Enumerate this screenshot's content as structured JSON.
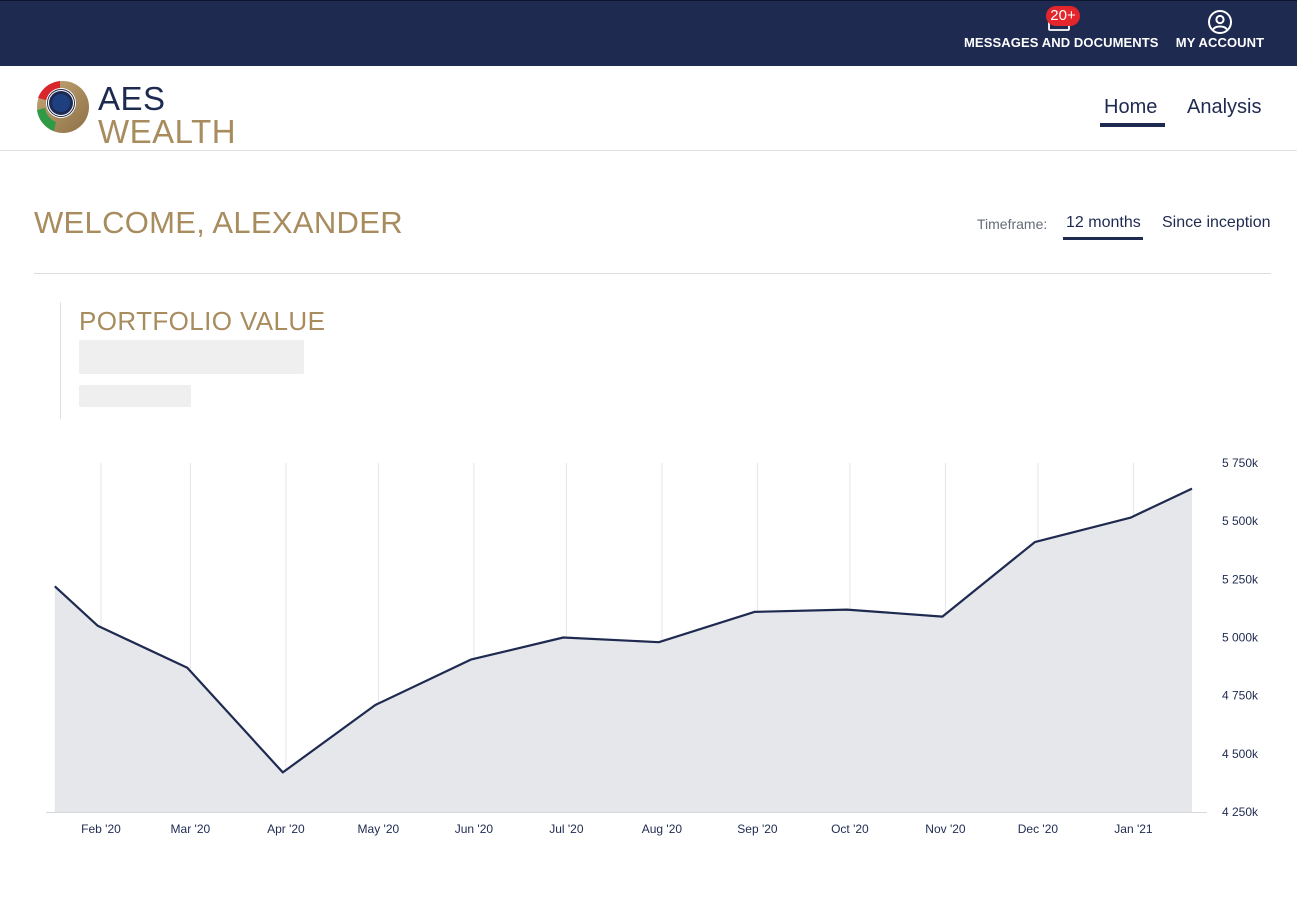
{
  "topbar": {
    "messages_label": "MESSAGES AND DOCUMENTS",
    "messages_badge": "20+",
    "account_label": "MY ACCOUNT",
    "messages_icon": "mail-icon",
    "account_icon": "user-circle-icon"
  },
  "brand": {
    "line1": "AES",
    "line2": "WEALTH",
    "colors": {
      "navy": "#1e2a50",
      "gold": "#a88c5e"
    }
  },
  "nav": {
    "items": [
      {
        "label": "Home",
        "active": true
      },
      {
        "label": "Analysis",
        "active": false
      }
    ]
  },
  "welcome": "WELCOME, ALEXANDER",
  "timeframe": {
    "label": "Timeframe:",
    "options": [
      {
        "label": "12 months",
        "active": true
      },
      {
        "label": "Since inception",
        "active": false
      }
    ]
  },
  "portfolio": {
    "title": "PORTFOLIO VALUE"
  },
  "chart_data": {
    "type": "area",
    "x_tick_labels": [
      "Feb '20",
      "Mar '20",
      "Apr '20",
      "May '20",
      "Jun '20",
      "Jul '20",
      "Aug '20",
      "Sep '20",
      "Oct '20",
      "Nov '20",
      "Dec '20",
      "Jan '21"
    ],
    "y_tick_labels": [
      "5 750k",
      "5 500k",
      "5 250k",
      "5 000k",
      "4 750k",
      "4 500k",
      "4 250k"
    ],
    "y_ticks": [
      5750,
      5500,
      5250,
      5000,
      4750,
      4500,
      4250
    ],
    "ylim": [
      4250,
      5750
    ],
    "y_unit": "k",
    "y_axis_position": "right",
    "grid": "vertical",
    "series": [
      {
        "x": [
          "2020-01-17",
          "2020-01-31",
          "2020-02-29",
          "2020-03-31",
          "2020-04-30",
          "2020-05-31",
          "2020-06-30",
          "2020-07-31",
          "2020-08-31",
          "2020-09-30",
          "2020-10-31",
          "2020-11-30",
          "2020-12-31",
          "2021-01-20"
        ],
        "values": [
          5220,
          5050,
          4870,
          4420,
          4710,
          4905,
          5000,
          4980,
          5110,
          5120,
          5090,
          5410,
          5515,
          5640
        ],
        "color": "#1e2a50",
        "fill": "#e6e7eb"
      }
    ]
  }
}
